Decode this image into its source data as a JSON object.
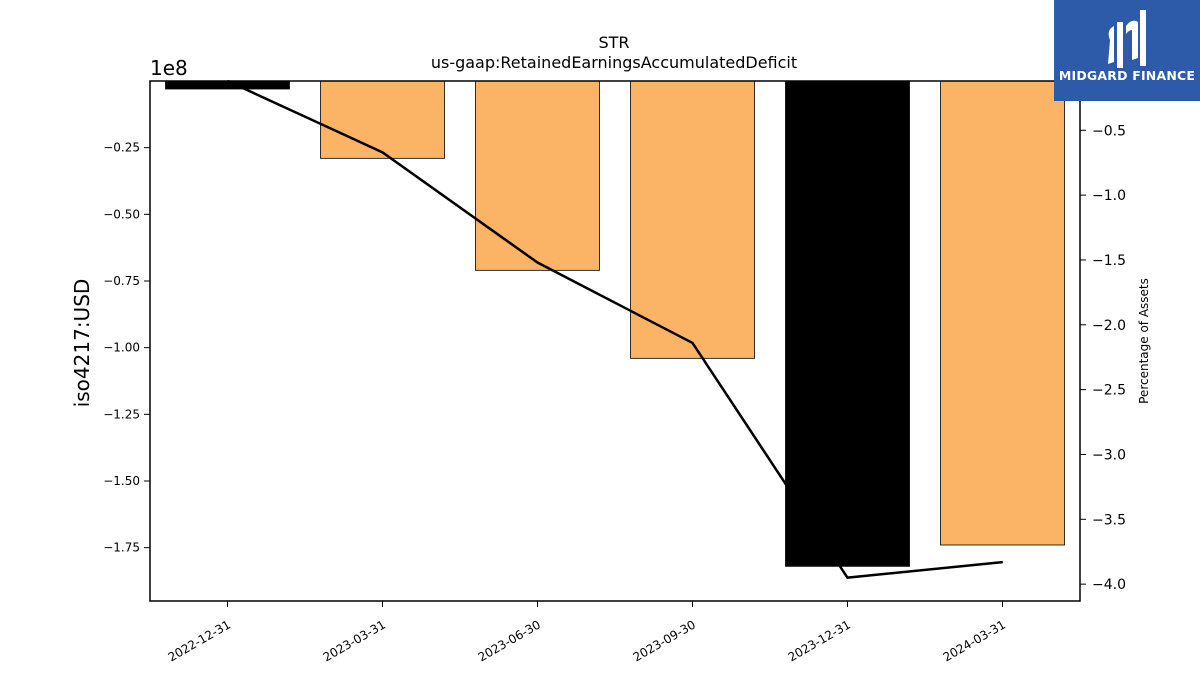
{
  "chart_data": {
    "type": "bar",
    "title": "STR",
    "subtitle": "us-gaap:RetainedEarningsAccumulatedDeficit",
    "ylabel": "iso4217:USD",
    "y2label": "Percentage of Assets",
    "offset_text": "1e8",
    "categories": [
      "2022-12-31",
      "2023-03-31",
      "2023-06-30",
      "2023-09-30",
      "2023-12-31",
      "2024-03-31"
    ],
    "series": [
      {
        "kind": "bar",
        "axis": "left",
        "values": [
          -3000000,
          -29000000,
          -71000000,
          -104000000,
          -182000000,
          -174000000
        ],
        "colors": [
          "#000000",
          "#fbb366",
          "#fbb366",
          "#fbb366",
          "#000000",
          "#fbb366"
        ]
      },
      {
        "kind": "line",
        "axis": "right",
        "color": "#000000",
        "values": [
          -0.12,
          -0.67,
          -1.52,
          -2.14,
          -3.95,
          -3.83
        ]
      }
    ],
    "ylim": [
      -195000000,
      0
    ],
    "y2lim": [
      -4.13,
      -0.12
    ],
    "yticks": [
      -25000000,
      -50000000,
      -75000000,
      -100000000,
      -125000000,
      -150000000,
      -175000000
    ],
    "ytick_labels": [
      "−0.25",
      "−0.50",
      "−0.75",
      "−1.00",
      "−1.25",
      "−1.50",
      "−1.75"
    ],
    "y2ticks": [
      -0.5,
      -1.0,
      -1.5,
      -2.0,
      -2.5,
      -3.0,
      -3.5,
      -4.0
    ],
    "y2tick_labels": [
      "−0.5",
      "−1.0",
      "−1.5",
      "−2.0",
      "−2.5",
      "−3.0",
      "−3.5",
      "−4.0"
    ],
    "grid": false
  },
  "logo": {
    "text": "MIDGARD FINANCE",
    "color": "#2d5aa9"
  }
}
